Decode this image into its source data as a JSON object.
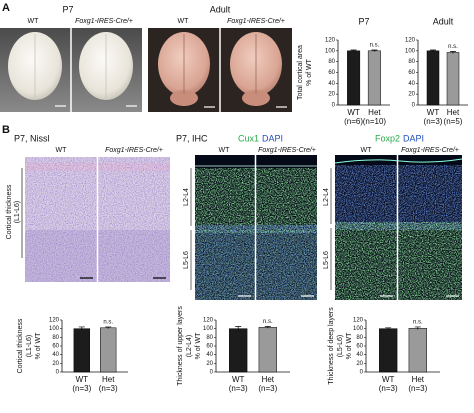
{
  "panel_labels": {
    "a": "A",
    "b": "B"
  },
  "panel_a": {
    "p7_title": "P7",
    "adult_title": "Adult",
    "p7_labels": [
      "WT",
      "Foxg1-IRES-Cre/+"
    ],
    "adult_labels": [
      "WT",
      "Foxg1-IRES-Cre/+"
    ]
  },
  "panel_b": {
    "nissl_title": "P7, Nissl",
    "nissl_labels": [
      "WT",
      "Foxg1-IRES-Cre/+"
    ],
    "nissl_axis": [
      "Cortical thickness",
      "(L1-L6)"
    ],
    "ihc_title": "P7, IHC",
    "cux1": {
      "marker": "Cux1",
      "stain": "DAPI",
      "labels": [
        "WT",
        "Foxg1-IRES-Cre/+"
      ],
      "layers": [
        "L2-L4",
        "L5-L6"
      ]
    },
    "foxp2": {
      "marker": "Foxp2",
      "stain": "DAPI",
      "labels": [
        "WT",
        "Foxg1-IRES-Cre/+"
      ],
      "layers": [
        "L2-L4",
        "L5-L6"
      ]
    }
  },
  "chart_data": [
    {
      "type": "bar",
      "title": "P7",
      "y_label": [
        "Total cortical area",
        "% of WT"
      ],
      "categories": [
        "WT",
        "Het"
      ],
      "sample_sizes": [
        "(n=6)",
        "(n=10)"
      ],
      "values": [
        100,
        100
      ],
      "errors": [
        1.5,
        1.5
      ],
      "significance": "n.s.",
      "colors": [
        "#1c1c1c",
        "#9a9a9a"
      ],
      "ylim": [
        0,
        120
      ],
      "yticks": [
        0,
        20,
        40,
        60,
        80,
        100,
        120
      ]
    },
    {
      "type": "bar",
      "title": "Adult",
      "categories": [
        "WT",
        "Het"
      ],
      "sample_sizes": [
        "(n=3)",
        "(n=5)"
      ],
      "values": [
        100,
        97
      ],
      "errors": [
        1.5,
        2
      ],
      "significance": "n.s.",
      "colors": [
        "#1c1c1c",
        "#9a9a9a"
      ],
      "ylim": [
        0,
        120
      ],
      "yticks": [
        0,
        20,
        40,
        60,
        80,
        100,
        120
      ]
    },
    {
      "type": "bar",
      "y_label": [
        "Cortical thickness",
        "(L1-L6)",
        "% of WT"
      ],
      "categories": [
        "WT",
        "Het"
      ],
      "sample_sizes": [
        "(n=3)",
        "(n=3)"
      ],
      "values": [
        100,
        102
      ],
      "errors": [
        4,
        2
      ],
      "significance": "n.s.",
      "colors": [
        "#1c1c1c",
        "#9a9a9a"
      ],
      "ylim": [
        0,
        120
      ],
      "yticks": [
        0,
        20,
        40,
        60,
        80,
        100,
        120
      ]
    },
    {
      "type": "bar",
      "y_label": [
        "Thickness of upper layers",
        "(L2-L4)",
        "% of WT"
      ],
      "categories": [
        "WT",
        "Het"
      ],
      "sample_sizes": [
        "(n=3)",
        "(n=3)"
      ],
      "values": [
        100,
        103
      ],
      "errors": [
        5,
        2
      ],
      "significance": "n.s.",
      "colors": [
        "#1c1c1c",
        "#9a9a9a"
      ],
      "ylim": [
        0,
        120
      ],
      "yticks": [
        0,
        20,
        40,
        60,
        80,
        100,
        120
      ]
    },
    {
      "type": "bar",
      "y_label": [
        "Thickness of deep layers",
        "(L5-L6)",
        "% of WT"
      ],
      "categories": [
        "WT",
        "Het"
      ],
      "sample_sizes": [
        "(n=3)",
        "(n=3)"
      ],
      "values": [
        100,
        101
      ],
      "errors": [
        2,
        3
      ],
      "significance": "n.s.",
      "colors": [
        "#1c1c1c",
        "#9a9a9a"
      ],
      "ylim": [
        0,
        120
      ],
      "yticks": [
        0,
        20,
        40,
        60,
        80,
        100,
        120
      ]
    }
  ]
}
